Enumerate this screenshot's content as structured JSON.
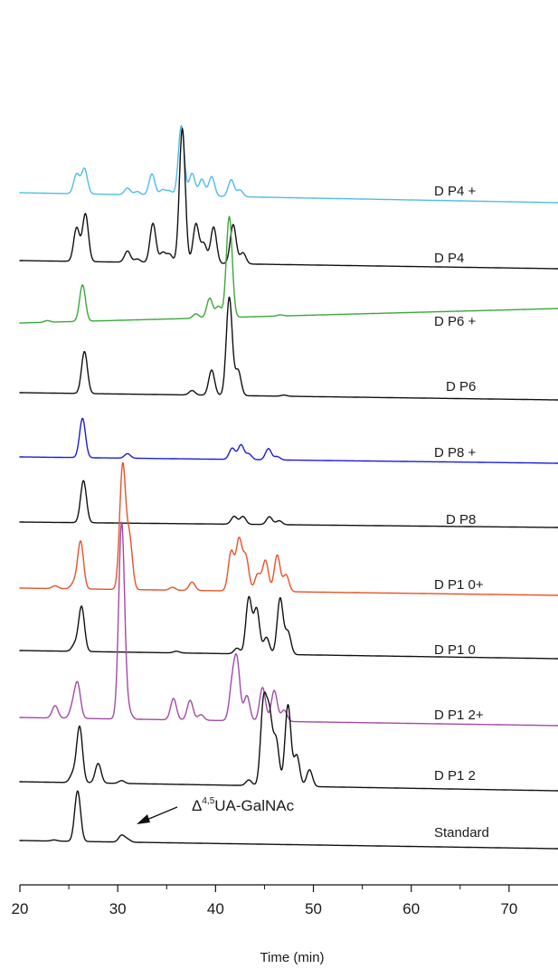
{
  "chart_data": {
    "type": "line",
    "xlabel": "Time (min)",
    "xlim": [
      20,
      75
    ],
    "xticks": [
      20,
      30,
      40,
      50,
      60,
      70
    ],
    "grid": false,
    "legend": "labels at right end of each trace",
    "annotation": {
      "text_main": "Δ",
      "text_sup": "4,5",
      "text_rest": "UA-GalNAc",
      "points_to_x": 30.5
    },
    "series": [
      {
        "name": "D P4 +",
        "color": "#4dbde6",
        "peaks": [
          [
            25.8,
            0.35
          ],
          [
            26.6,
            0.45
          ],
          [
            31,
            0.12
          ],
          [
            32,
            0.06
          ],
          [
            33.5,
            0.38
          ],
          [
            34.6,
            0.1
          ],
          [
            35.3,
            0.08
          ],
          [
            36.5,
            1.25
          ],
          [
            37.6,
            0.4
          ],
          [
            38.6,
            0.3
          ],
          [
            39.6,
            0.35
          ],
          [
            41.6,
            0.3
          ],
          [
            42.5,
            0.12
          ]
        ]
      },
      {
        "name": "D P4",
        "color": "#111111",
        "peaks": [
          [
            25.8,
            0.6
          ],
          [
            26.7,
            0.85
          ],
          [
            31,
            0.2
          ],
          [
            32,
            0.06
          ],
          [
            33.6,
            0.7
          ],
          [
            34.6,
            0.18
          ],
          [
            35.3,
            0.15
          ],
          [
            36.6,
            2.4
          ],
          [
            38,
            0.7
          ],
          [
            38.8,
            0.35
          ],
          [
            39.8,
            0.65
          ],
          [
            41.8,
            0.7
          ],
          [
            42.8,
            0.2
          ]
        ]
      },
      {
        "name": "D P6 +",
        "color": "#3ba83a",
        "peaks": [
          [
            22.8,
            0.03
          ],
          [
            26.4,
            0.65
          ],
          [
            38,
            0.08
          ],
          [
            39.4,
            0.35
          ],
          [
            40.3,
            0.2
          ],
          [
            41.4,
            1.8
          ],
          [
            46.6,
            0.02
          ]
        ]
      },
      {
        "name": "D P6",
        "color": "#111111",
        "peaks": [
          [
            26.6,
            0.75
          ],
          [
            37.6,
            0.08
          ],
          [
            39.6,
            0.45
          ],
          [
            41.4,
            1.75
          ],
          [
            42.3,
            0.45
          ],
          [
            47,
            0.02
          ]
        ]
      },
      {
        "name": "D P8 +",
        "color": "#1d1dd6",
        "peaks": [
          [
            26.4,
            0.7
          ],
          [
            31,
            0.08
          ],
          [
            41.7,
            0.2
          ],
          [
            42.6,
            0.26
          ],
          [
            43.4,
            0.1
          ],
          [
            45.4,
            0.2
          ],
          [
            46.3,
            0.06
          ]
        ]
      },
      {
        "name": "D P8",
        "color": "#111111",
        "peaks": [
          [
            26.5,
            0.75
          ],
          [
            41.9,
            0.14
          ],
          [
            42.8,
            0.14
          ],
          [
            45.5,
            0.14
          ],
          [
            46.5,
            0.07
          ]
        ]
      },
      {
        "name": "D P1 0+",
        "color": "#e8512a",
        "peaks": [
          [
            23.6,
            0.05
          ],
          [
            25.5,
            0.1
          ],
          [
            26.2,
            0.85
          ],
          [
            30.5,
            2.2
          ],
          [
            31.2,
            0.9
          ],
          [
            35.6,
            0.05
          ],
          [
            37.6,
            0.15
          ],
          [
            41.6,
            0.7
          ],
          [
            42.4,
            0.9
          ],
          [
            43.1,
            0.6
          ],
          [
            44.3,
            0.3
          ],
          [
            45.1,
            0.55
          ],
          [
            46.3,
            0.65
          ],
          [
            47.2,
            0.3
          ]
        ]
      },
      {
        "name": "D P1 0",
        "color": "#111111",
        "peaks": [
          [
            25.6,
            0.12
          ],
          [
            26.3,
            0.8
          ],
          [
            36,
            0.03
          ],
          [
            42.2,
            0.1
          ],
          [
            43.4,
            1.0
          ],
          [
            44.2,
            0.8
          ],
          [
            45.2,
            0.3
          ],
          [
            46.6,
            1.0
          ],
          [
            47.4,
            0.4
          ]
        ]
      },
      {
        "name": "D P1 2+",
        "color": "#a24aa8",
        "peaks": [
          [
            23.6,
            0.22
          ],
          [
            25.4,
            0.2
          ],
          [
            25.9,
            0.6
          ],
          [
            30.4,
            3.5
          ],
          [
            31.1,
            0.15
          ],
          [
            35.7,
            0.38
          ],
          [
            37.4,
            0.35
          ],
          [
            38.5,
            0.1
          ],
          [
            41.7,
            0.6
          ],
          [
            42.2,
            1.0
          ],
          [
            43.2,
            0.45
          ],
          [
            44.8,
            0.6
          ],
          [
            46,
            0.55
          ],
          [
            47,
            0.2
          ]
        ]
      },
      {
        "name": "D P1 2",
        "color": "#111111",
        "peaks": [
          [
            25.4,
            0.15
          ],
          [
            26.1,
            1.0
          ],
          [
            28,
            0.35
          ],
          [
            30.4,
            0.05
          ],
          [
            43.4,
            0.1
          ],
          [
            44.9,
            1.45
          ],
          [
            45.5,
            1.2
          ],
          [
            46.2,
            0.8
          ],
          [
            47.4,
            1.45
          ],
          [
            48.3,
            0.55
          ],
          [
            49.6,
            0.3
          ]
        ]
      },
      {
        "name": "Standard",
        "color": "#111111",
        "peaks": [
          [
            23.5,
            0.02
          ],
          [
            25.9,
            0.9
          ],
          [
            30.4,
            0.12
          ],
          [
            31,
            0.05
          ]
        ]
      }
    ]
  }
}
